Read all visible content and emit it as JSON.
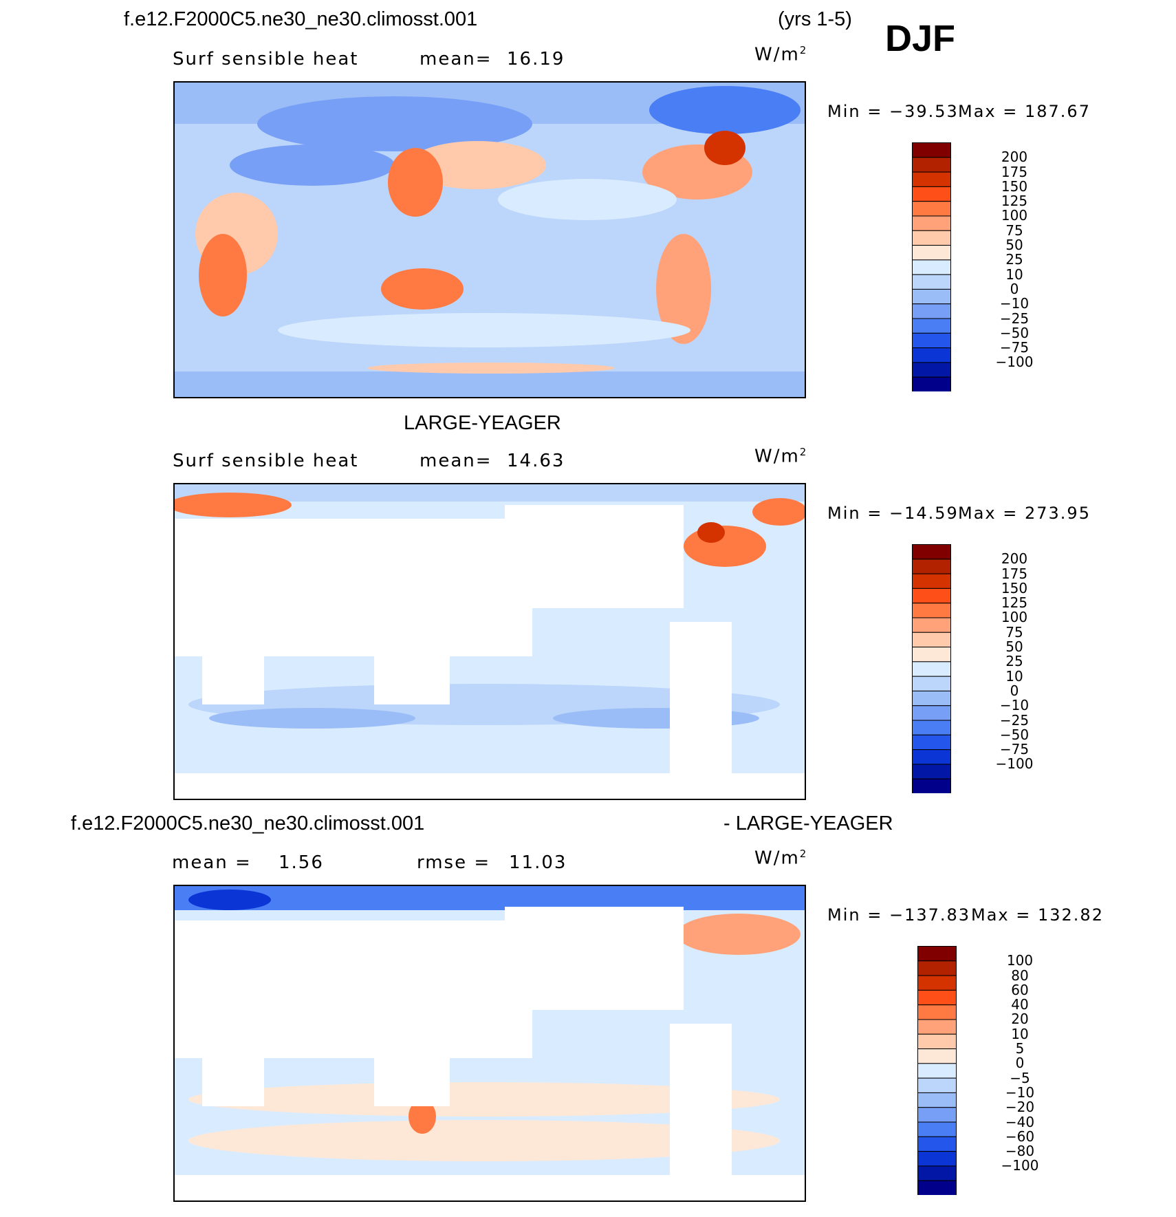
{
  "header": {
    "case_name": "f.e12.F2000C5.ne30_ne30.climosst.001",
    "years": "(yrs 1-5)",
    "season": "DJF"
  },
  "colors": {
    "cb_main": [
      "#800000",
      "#b32200",
      "#d43300",
      "#ff4f19",
      "#ff7a42",
      "#ffa27a",
      "#ffcaac",
      "#fde8d8",
      "#d9ecff",
      "#bcd5fa",
      "#9abdf8",
      "#779ff6",
      "#4a7ef5",
      "#2456eb",
      "#0c35d6",
      "#0317a6",
      "#00008b"
    ],
    "cb_diff": [
      "#800000",
      "#b32200",
      "#d43300",
      "#ff4f19",
      "#ff7a42",
      "#ffa27a",
      "#ffcaac",
      "#fde8d8",
      "#d9ecff",
      "#bcd5fa",
      "#9abdf8",
      "#779ff6",
      "#4a7ef5",
      "#2456eb",
      "#0c35d6",
      "#0317a6",
      "#00008b"
    ]
  },
  "chart_data": [
    {
      "type": "heatmap",
      "panel_title": "",
      "variable": "Surf sensible heat",
      "stat_label": "mean=",
      "stat_value": "16.19",
      "units_base": "W/m",
      "units_exp": "2",
      "min_label": "Min = −39.53",
      "max_label": "Max = 187.67",
      "min": -39.53,
      "max": 187.67,
      "mean": 16.19,
      "colorbar_labels": [
        "200",
        "175",
        "150",
        "125",
        "100",
        "75",
        "50",
        "25",
        "10",
        "0",
        "−10",
        "−25",
        "−50",
        "−75",
        "−100"
      ]
    },
    {
      "type": "heatmap",
      "panel_title": "LARGE-YEAGER",
      "variable": "Surf sensible heat",
      "stat_label": "mean=",
      "stat_value": "14.63",
      "units_base": "W/m",
      "units_exp": "2",
      "min_label": "Min = −14.59",
      "max_label": "Max = 273.95",
      "min": -14.59,
      "max": 273.95,
      "mean": 14.63,
      "colorbar_labels": [
        "200",
        "175",
        "150",
        "125",
        "100",
        "75",
        "50",
        "25",
        "10",
        "0",
        "−10",
        "−25",
        "−50",
        "−75",
        "−100"
      ]
    },
    {
      "type": "heatmap",
      "panel_title_left": "f.e12.F2000C5.ne30_ne30.climosst.001",
      "panel_title_right": "- LARGE-YEAGER",
      "stat1_label": "mean =",
      "stat1_value": "1.56",
      "stat2_label": "rmse =",
      "stat2_value": "11.03",
      "units_base": "W/m",
      "units_exp": "2",
      "min_label": "Min = −137.83",
      "max_label": "Max = 132.82",
      "min": -137.83,
      "max": 132.82,
      "mean": 1.56,
      "rmse": 11.03,
      "colorbar_labels": [
        "100",
        "80",
        "60",
        "40",
        "20",
        "10",
        "5",
        "0",
        "−5",
        "−10",
        "−20",
        "−40",
        "−60",
        "−80",
        "−100"
      ]
    }
  ]
}
